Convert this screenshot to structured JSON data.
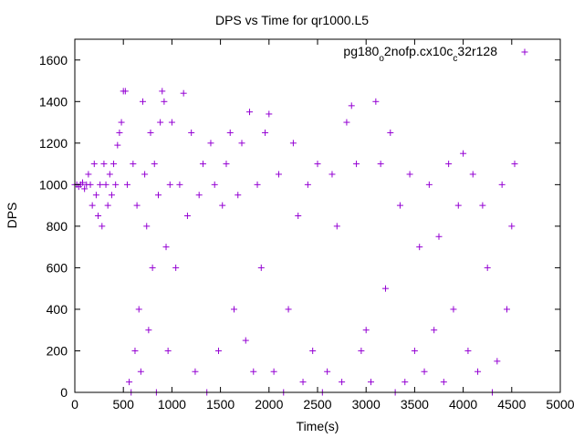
{
  "chart_data": {
    "type": "scatter",
    "title": "DPS vs Time for qr1000.L5",
    "xlabel": "Time(s)",
    "ylabel": "DPS",
    "xlim": [
      0,
      5000
    ],
    "ylim": [
      0,
      1700
    ],
    "xticks": [
      0,
      500,
      1000,
      1500,
      2000,
      2500,
      3000,
      3500,
      4000,
      4500,
      5000
    ],
    "yticks": [
      0,
      200,
      400,
      600,
      800,
      1000,
      1200,
      1400,
      1600
    ],
    "grid": false,
    "legend_position": "top-right",
    "marker": "+",
    "color": "#9400d3",
    "series": [
      {
        "name": "pg180_o2nofp.cx10c_c32r128",
        "name_parts": [
          {
            "text": "pg180",
            "sub": false
          },
          {
            "text": "o",
            "sub": true
          },
          {
            "text": "2nofp.cx10c",
            "sub": false
          },
          {
            "text": "c",
            "sub": true
          },
          {
            "text": "32r128",
            "sub": false
          }
        ],
        "points": [
          [
            0,
            1000
          ],
          [
            20,
            1000
          ],
          [
            40,
            990
          ],
          [
            60,
            1000
          ],
          [
            80,
            1010
          ],
          [
            100,
            980
          ],
          [
            120,
            1000
          ],
          [
            140,
            1050
          ],
          [
            160,
            1000
          ],
          [
            180,
            900
          ],
          [
            200,
            1100
          ],
          [
            220,
            950
          ],
          [
            240,
            850
          ],
          [
            260,
            1000
          ],
          [
            280,
            800
          ],
          [
            300,
            1100
          ],
          [
            320,
            1000
          ],
          [
            340,
            900
          ],
          [
            360,
            1050
          ],
          [
            380,
            950
          ],
          [
            400,
            1100
          ],
          [
            420,
            1000
          ],
          [
            440,
            1190
          ],
          [
            460,
            1250
          ],
          [
            480,
            1300
          ],
          [
            500,
            1450
          ],
          [
            520,
            1450
          ],
          [
            540,
            1000
          ],
          [
            560,
            50
          ],
          [
            580,
            0
          ],
          [
            600,
            1100
          ],
          [
            620,
            200
          ],
          [
            640,
            900
          ],
          [
            660,
            400
          ],
          [
            680,
            100
          ],
          [
            700,
            1400
          ],
          [
            720,
            1050
          ],
          [
            740,
            800
          ],
          [
            760,
            300
          ],
          [
            780,
            1250
          ],
          [
            800,
            600
          ],
          [
            820,
            1100
          ],
          [
            840,
            0
          ],
          [
            860,
            950
          ],
          [
            880,
            1300
          ],
          [
            900,
            1450
          ],
          [
            920,
            1400
          ],
          [
            940,
            700
          ],
          [
            960,
            200
          ],
          [
            980,
            1000
          ],
          [
            1000,
            1300
          ],
          [
            1040,
            600
          ],
          [
            1080,
            1000
          ],
          [
            1120,
            1440
          ],
          [
            1160,
            850
          ],
          [
            1200,
            1250
          ],
          [
            1240,
            100
          ],
          [
            1280,
            950
          ],
          [
            1320,
            1100
          ],
          [
            1360,
            0
          ],
          [
            1400,
            1200
          ],
          [
            1440,
            1000
          ],
          [
            1480,
            200
          ],
          [
            1520,
            900
          ],
          [
            1560,
            1100
          ],
          [
            1600,
            1250
          ],
          [
            1640,
            400
          ],
          [
            1680,
            950
          ],
          [
            1720,
            1200
          ],
          [
            1760,
            250
          ],
          [
            1800,
            1350
          ],
          [
            1840,
            100
          ],
          [
            1880,
            1000
          ],
          [
            1920,
            600
          ],
          [
            1960,
            1250
          ],
          [
            2000,
            1340
          ],
          [
            2050,
            100
          ],
          [
            2100,
            1050
          ],
          [
            2150,
            0
          ],
          [
            2200,
            400
          ],
          [
            2250,
            1200
          ],
          [
            2300,
            850
          ],
          [
            2350,
            50
          ],
          [
            2400,
            1000
          ],
          [
            2450,
            200
          ],
          [
            2500,
            1100
          ],
          [
            2550,
            0
          ],
          [
            2600,
            100
          ],
          [
            2650,
            1050
          ],
          [
            2700,
            800
          ],
          [
            2750,
            50
          ],
          [
            2800,
            1300
          ],
          [
            2850,
            1380
          ],
          [
            2900,
            1100
          ],
          [
            2950,
            200
          ],
          [
            3000,
            300
          ],
          [
            3050,
            50
          ],
          [
            3100,
            1400
          ],
          [
            3150,
            1100
          ],
          [
            3200,
            500
          ],
          [
            3250,
            1250
          ],
          [
            3300,
            0
          ],
          [
            3350,
            900
          ],
          [
            3400,
            50
          ],
          [
            3450,
            1050
          ],
          [
            3500,
            200
          ],
          [
            3550,
            700
          ],
          [
            3600,
            100
          ],
          [
            3650,
            1000
          ],
          [
            3700,
            300
          ],
          [
            3750,
            750
          ],
          [
            3800,
            50
          ],
          [
            3850,
            1100
          ],
          [
            3900,
            400
          ],
          [
            3950,
            900
          ],
          [
            4000,
            1150
          ],
          [
            4050,
            200
          ],
          [
            4100,
            1050
          ],
          [
            4150,
            100
          ],
          [
            4200,
            900
          ],
          [
            4250,
            600
          ],
          [
            4300,
            0
          ],
          [
            4350,
            150
          ],
          [
            4400,
            1000
          ],
          [
            4450,
            400
          ],
          [
            4500,
            800
          ],
          [
            4530,
            1100
          ]
        ]
      }
    ]
  }
}
